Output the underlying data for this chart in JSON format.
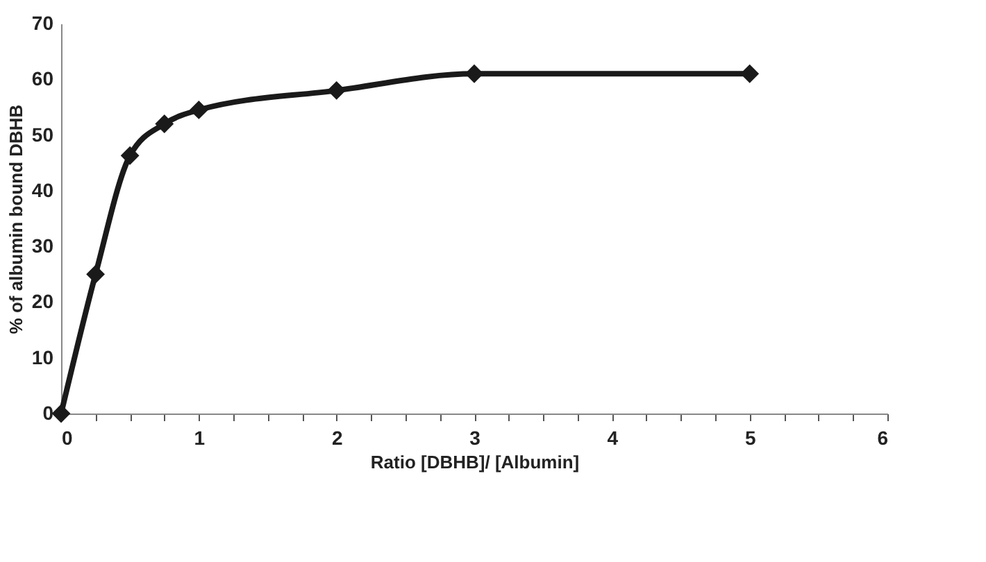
{
  "chart_data": {
    "type": "line",
    "xlabel": "Ratio [DBHB]/ [Albumin]",
    "ylabel": "% of albumin bound DBHB",
    "x": [
      0,
      0.25,
      0.5,
      0.75,
      1,
      2,
      3,
      5
    ],
    "series": [
      {
        "color": "#1a1a1a",
        "values": [
          0,
          25,
          46.3,
          52,
          54.5,
          58,
          61,
          61
        ]
      }
    ],
    "xlim": [
      0,
      6
    ],
    "ylim": [
      0,
      70
    ],
    "xticks": [
      0,
      {
        "value": 0.25,
        "label": null
      },
      {
        "value": 0.5,
        "label": null
      },
      {
        "value": 0.75,
        "label": null
      },
      1,
      {
        "value": 1.25,
        "label": null
      },
      {
        "value": 1.5,
        "label": null
      },
      {
        "value": 1.75,
        "label": null
      },
      2,
      {
        "value": 2.25,
        "label": null
      },
      {
        "value": 2.5,
        "label": null
      },
      {
        "value": 2.75,
        "label": null
      },
      3,
      {
        "value": 3.25,
        "label": null
      },
      {
        "value": 3.5,
        "label": null
      },
      {
        "value": 3.75,
        "label": null
      },
      4,
      {
        "value": 4.25,
        "label": null
      },
      {
        "value": 4.5,
        "label": null
      },
      {
        "value": 4.75,
        "label": null
      },
      5,
      {
        "value": 5.25,
        "label": null
      },
      {
        "value": 5.5,
        "label": null
      },
      {
        "value": 5.75,
        "label": null
      },
      6
    ],
    "yticks": [
      0,
      10,
      20,
      30,
      40,
      50,
      60,
      70
    ],
    "grid": false,
    "marker": "diamond",
    "line_style": "solid"
  }
}
